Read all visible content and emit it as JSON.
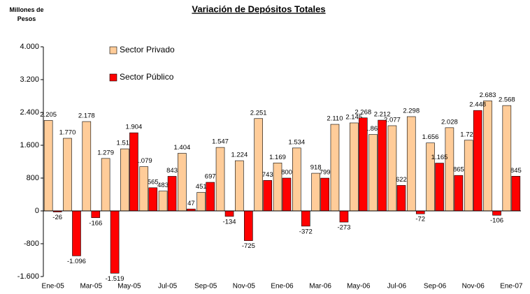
{
  "chart_data": {
    "type": "bar",
    "title": "Variación de Depósitos Totales",
    "y_label": "Millones de Pesos",
    "categories": [
      "Ene-05",
      null,
      "Mar-05",
      null,
      "May-05",
      null,
      "Jul-05",
      null,
      "Sep-05",
      null,
      "Nov-05",
      null,
      "Ene-06",
      null,
      "Mar-06",
      null,
      "May-06",
      null,
      "Jul-06",
      null,
      "Sep-06",
      null,
      "Nov-06",
      null,
      "Ene-07"
    ],
    "series": [
      {
        "name": "Sector Privado",
        "color": "#FFCC99",
        "values": [
          2205,
          1770,
          2178,
          1279,
          1513,
          1079,
          483,
          1404,
          451,
          1547,
          1224,
          2251,
          1169,
          1534,
          918,
          2110,
          2145,
          1863,
          2077,
          2298,
          1656,
          2028,
          1723,
          2683,
          2568
        ],
        "value_labels": [
          "2.205",
          "1.770",
          "2.178",
          "1.279",
          "1.513",
          "1.079",
          "483",
          "1.404",
          "451",
          "1.547",
          "1.224",
          "2.251",
          "1.169",
          "1.534",
          "918",
          "2.110",
          "2.145",
          "1.863",
          "2.077",
          "2.298",
          "1.656",
          "2.028",
          "1.723",
          "2.683",
          "2.568"
        ]
      },
      {
        "name": "Sector Público",
        "color": "#FF0000",
        "values": [
          -26,
          -1096,
          -166,
          -1519,
          1904,
          565,
          843,
          47,
          697,
          -134,
          -725,
          743,
          800,
          -372,
          799,
          -273,
          2268,
          2212,
          622,
          -72,
          1165,
          865,
          2448,
          -106,
          845
        ],
        "value_labels": [
          "-26",
          "-1.096",
          "-166",
          "-1.519",
          "1.904",
          "565",
          "843",
          "47",
          "697",
          "-134",
          "-725",
          "743",
          "800",
          "-372",
          "799",
          "-273",
          "2.268",
          "2.212",
          "622",
          "-72",
          "1.165",
          "865",
          "2.448",
          "-106",
          "845"
        ]
      }
    ],
    "ylim": [
      -1600,
      4000
    ],
    "yticks": [
      {
        "value": -1600,
        "label": "-1.600"
      },
      -800,
      0,
      800,
      {
        "value": 1600,
        "label": "1.600"
      },
      {
        "value": 2400,
        "label": "2.400"
      },
      {
        "value": 3200,
        "label": "3.200"
      },
      {
        "value": 4000,
        "label": "4.000"
      }
    ],
    "grid": false,
    "legend": "upper left"
  }
}
